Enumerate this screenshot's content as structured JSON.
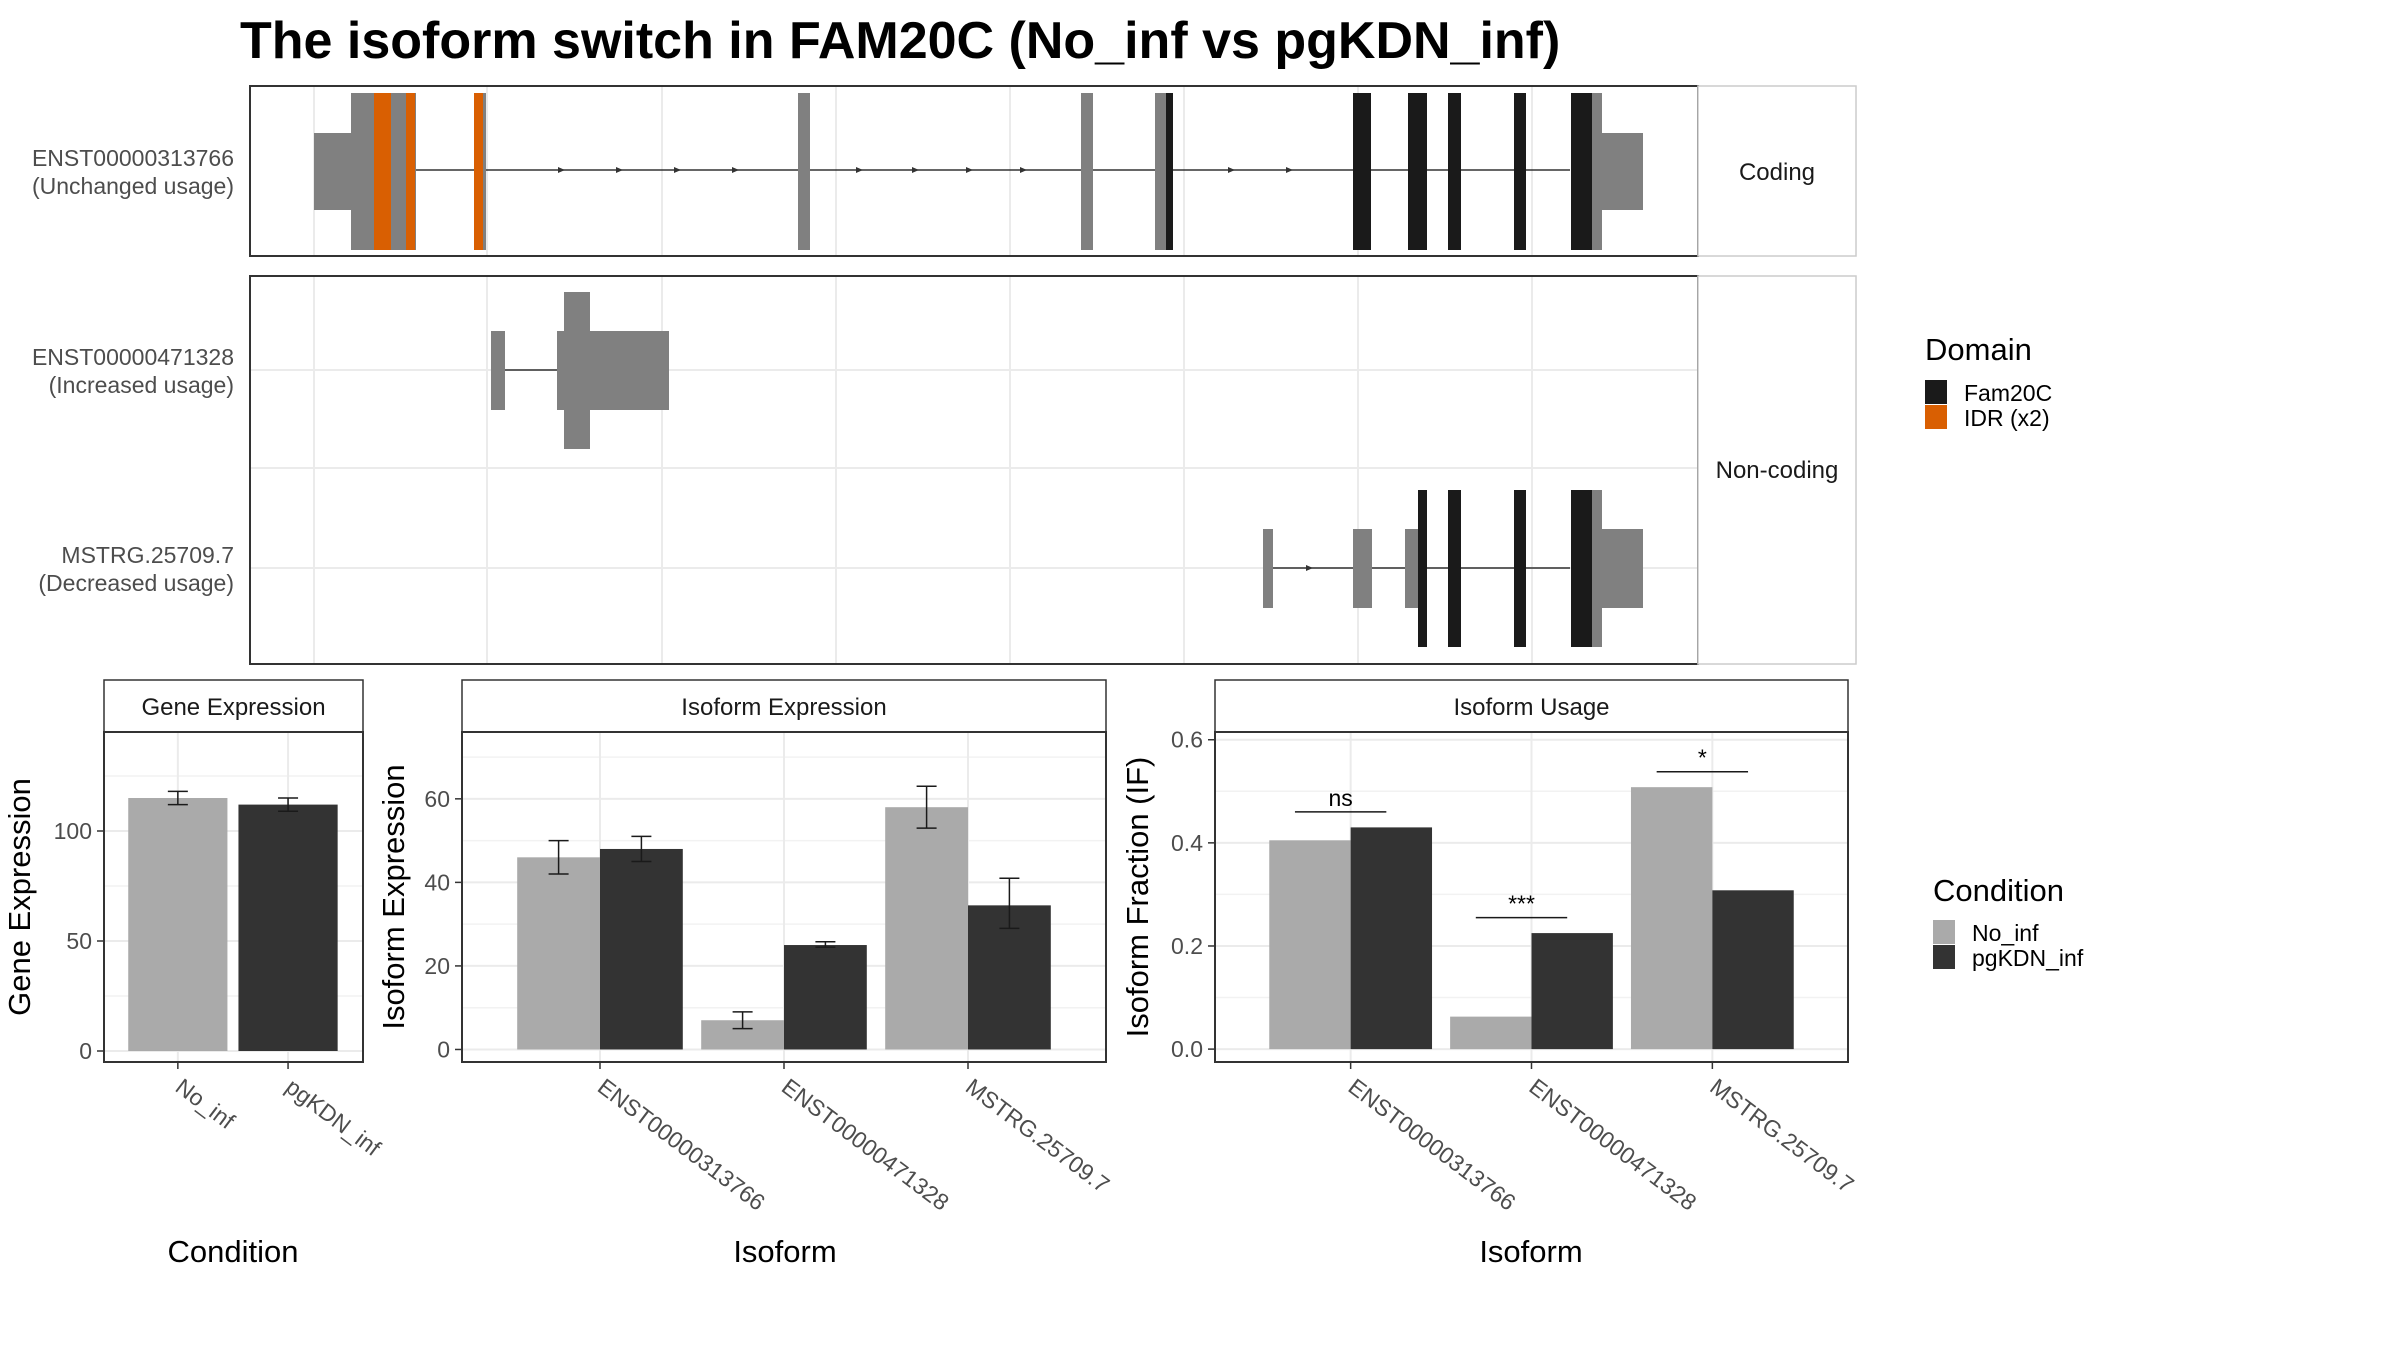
{
  "title": "The isoform switch in FAM20C (No_inf vs pgKDN_inf)",
  "colors": {
    "fam20c": "#1a1a1a",
    "idr": "#d95f02",
    "exon": "#808080",
    "no_inf": "#aaaaaa",
    "pgkdn_inf": "#333333"
  },
  "structure": {
    "coding_label": "Coding",
    "noncoding_label": "Non-coding",
    "transcripts": [
      {
        "id": "ENST00000313766",
        "usage": "(Unchanged usage)"
      },
      {
        "id": "ENST00000471328",
        "usage": "(Increased usage)"
      },
      {
        "id": "MSTRG.25709.7",
        "usage": "(Decreased usage)"
      }
    ]
  },
  "legend": {
    "domain_title": "Domain",
    "domains": [
      {
        "name": "Fam20C",
        "color": "#1a1a1a"
      },
      {
        "name": "IDR (x2)",
        "color": "#d95f02"
      }
    ],
    "condition_title": "Condition",
    "conditions": [
      {
        "name": "No_inf",
        "color": "#aaaaaa"
      },
      {
        "name": "pgKDN_inf",
        "color": "#333333"
      }
    ]
  },
  "chart_data": [
    {
      "type": "bar",
      "title": "Gene Expression",
      "xlabel": "Condition",
      "ylabel": "Gene Expression",
      "categories": [
        "No_inf",
        "pgKDN_inf"
      ],
      "values": [
        115,
        112
      ],
      "errors": [
        [
          112,
          118
        ],
        [
          109,
          115
        ]
      ],
      "ylim": [
        -5,
        145
      ],
      "yticks": [
        "0",
        "50",
        "100"
      ]
    },
    {
      "type": "bar",
      "title": "Isoform Expression",
      "xlabel": "Isoform",
      "ylabel": "Isoform Expression",
      "categories": [
        "ENST00000313766",
        "ENST00000471328",
        "MSTRG.25709.7"
      ],
      "series": [
        {
          "name": "No_inf",
          "values": [
            46,
            7,
            58
          ],
          "errors": [
            [
              42,
              50
            ],
            [
              5,
              9
            ],
            [
              53,
              63
            ]
          ]
        },
        {
          "name": "pgKDN_inf",
          "values": [
            48,
            25,
            34.5
          ],
          "errors": [
            [
              45,
              51
            ],
            [
              24.5,
              25.8
            ],
            [
              29,
              41
            ]
          ]
        }
      ],
      "ylim": [
        -3,
        76
      ],
      "yticks": [
        "0",
        "20",
        "40",
        "60"
      ]
    },
    {
      "type": "bar",
      "title": "Isoform Usage",
      "xlabel": "Isoform",
      "ylabel": "Isoform Fraction (IF)",
      "categories": [
        "ENST00000313766",
        "ENST00000471328",
        "MSTRG.25709.7"
      ],
      "series": [
        {
          "name": "No_inf",
          "values": [
            0.405,
            0.063,
            0.508
          ]
        },
        {
          "name": "pgKDN_inf",
          "values": [
            0.43,
            0.225,
            0.308
          ]
        }
      ],
      "significance": [
        "ns",
        "***",
        "*"
      ],
      "ylim": [
        -0.025,
        0.615
      ],
      "yticks": [
        "0.0",
        "0.2",
        "0.4",
        "0.6"
      ]
    }
  ]
}
